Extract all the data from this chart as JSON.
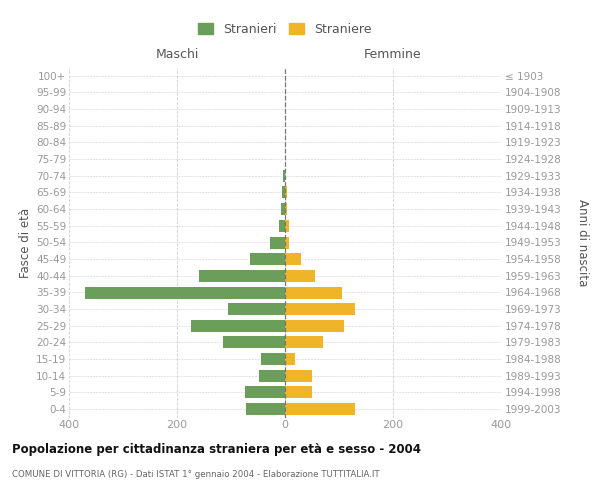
{
  "age_groups": [
    "100+",
    "95-99",
    "90-94",
    "85-89",
    "80-84",
    "75-79",
    "70-74",
    "65-69",
    "60-64",
    "55-59",
    "50-54",
    "45-49",
    "40-44",
    "35-39",
    "30-34",
    "25-29",
    "20-24",
    "15-19",
    "10-14",
    "5-9",
    "0-4"
  ],
  "birth_years": [
    "≤ 1903",
    "1904-1908",
    "1909-1913",
    "1914-1918",
    "1919-1923",
    "1924-1928",
    "1929-1933",
    "1934-1938",
    "1939-1943",
    "1944-1948",
    "1949-1953",
    "1954-1958",
    "1959-1963",
    "1964-1968",
    "1969-1973",
    "1974-1978",
    "1979-1983",
    "1984-1988",
    "1989-1993",
    "1994-1998",
    "1999-2003"
  ],
  "maschi": [
    0,
    0,
    0,
    0,
    0,
    0,
    4,
    5,
    7,
    12,
    28,
    65,
    160,
    370,
    105,
    175,
    115,
    45,
    48,
    75,
    72
  ],
  "femmine": [
    0,
    0,
    0,
    0,
    0,
    0,
    0,
    3,
    3,
    8,
    8,
    30,
    55,
    105,
    130,
    110,
    70,
    18,
    50,
    50,
    130
  ],
  "color_maschi": "#6a9e5a",
  "color_femmine": "#f0b429",
  "title": "Popolazione per cittadinanza straniera per età e sesso - 2004",
  "subtitle": "COMUNE DI VITTORIA (RG) - Dati ISTAT 1° gennaio 2004 - Elaborazione TUTTITALIA.IT",
  "ylabel_left": "Fasce di età",
  "ylabel_right": "Anni di nascita",
  "label_maschi": "Maschi",
  "label_femmine": "Femmine",
  "legend_maschi": "Stranieri",
  "legend_femmine": "Straniere",
  "xlim": 400,
  "bg_color": "#ffffff",
  "grid_color": "#d0d0d0",
  "center_line_color": "#777777",
  "tick_color": "#999999",
  "label_color": "#555555",
  "title_color": "#111111",
  "subtitle_color": "#666666"
}
